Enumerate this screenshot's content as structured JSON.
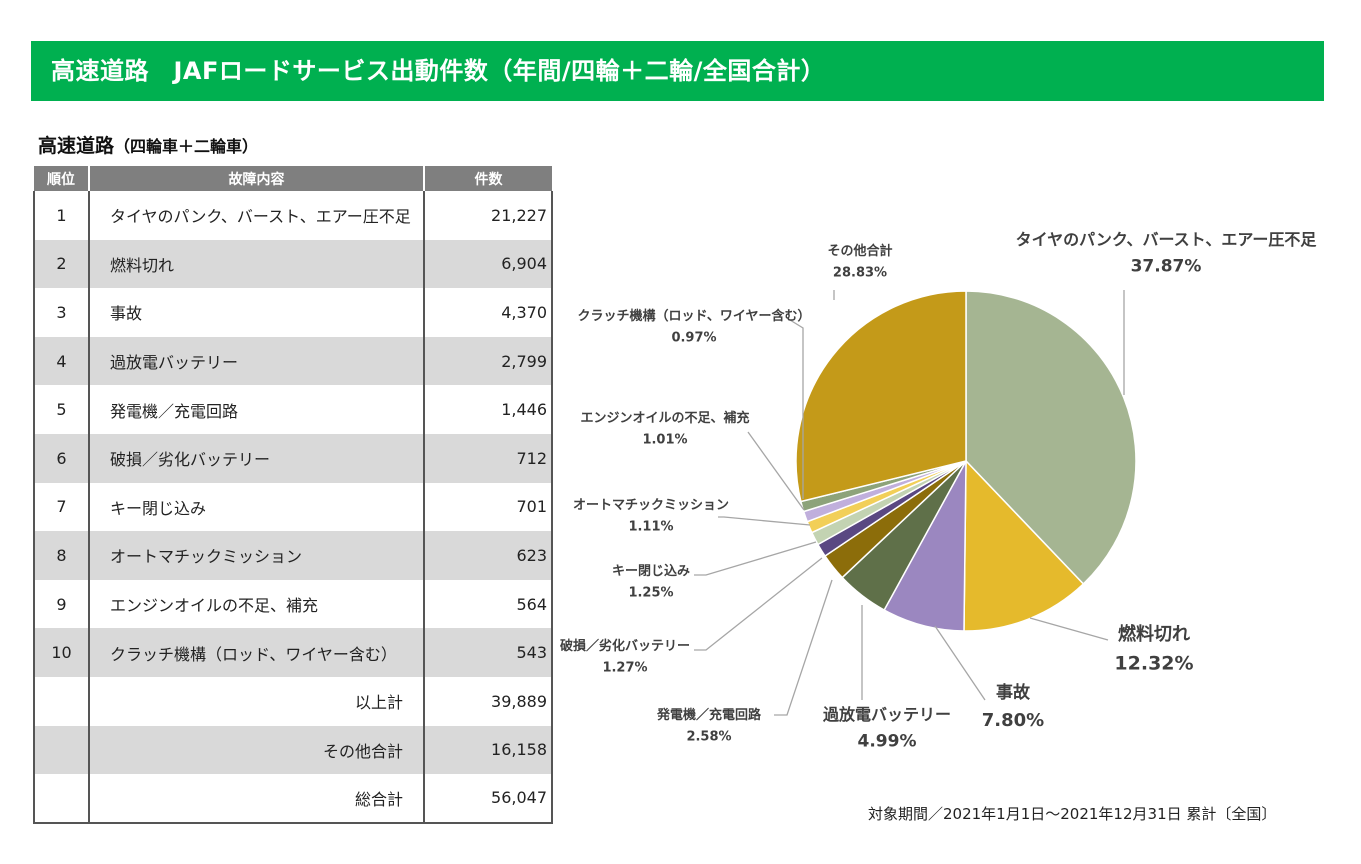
{
  "header": {
    "title": "高速道路　JAFロードサービス出動件数（年間/四輪＋二輪/全国合計）"
  },
  "table": {
    "subtitle_main": "高速道路",
    "subtitle_paren": "（四輪車＋二輪車）",
    "columns": [
      "順位",
      "故障内容",
      "件数"
    ],
    "rows": [
      {
        "rank": "1",
        "cause": "タイヤのパンク、バースト、エアー圧不足",
        "count": "21,227"
      },
      {
        "rank": "2",
        "cause": "燃料切れ",
        "count": "6,904"
      },
      {
        "rank": "3",
        "cause": "事故",
        "count": "4,370"
      },
      {
        "rank": "4",
        "cause": "過放電バッテリー",
        "count": "2,799"
      },
      {
        "rank": "5",
        "cause": "発電機／充電回路",
        "count": "1,446"
      },
      {
        "rank": "6",
        "cause": "破損／劣化バッテリー",
        "count": "712"
      },
      {
        "rank": "7",
        "cause": "キー閉じ込み",
        "count": "701"
      },
      {
        "rank": "8",
        "cause": "オートマチックミッション",
        "count": "623"
      },
      {
        "rank": "9",
        "cause": "エンジンオイルの不足、補充",
        "count": "564"
      },
      {
        "rank": "10",
        "cause": "クラッチ機構（ロッド、ワイヤー含む）",
        "count": "543"
      }
    ],
    "totals": [
      {
        "label": "以上計",
        "count": "39,889"
      },
      {
        "label": "その他合計",
        "count": "16,158"
      },
      {
        "label": "総合計",
        "count": "56,047"
      }
    ]
  },
  "chart_data": {
    "type": "pie",
    "start": "12 o'clock, clockwise",
    "slices": [
      {
        "label": "タイヤのパンク、バースト、エアー圧不足",
        "percent_label": "37.87%",
        "value": 37.87,
        "color": "#a5b592"
      },
      {
        "label": "燃料切れ",
        "percent_label": "12.32%",
        "value": 12.32,
        "color": "#e5ba2c"
      },
      {
        "label": "事故",
        "percent_label": "7.80%",
        "value": 7.8,
        "color": "#9b87c0"
      },
      {
        "label": "過放電バッテリー",
        "percent_label": "4.99%",
        "value": 4.99,
        "color": "#5f7049"
      },
      {
        "label": "発電機／充電回路",
        "percent_label": "2.58%",
        "value": 2.58,
        "color": "#8c6d0a"
      },
      {
        "label": "破損／劣化バッテリー",
        "percent_label": "1.27%",
        "value": 1.27,
        "color": "#5a4882"
      },
      {
        "label": "キー閉じ込み",
        "percent_label": "1.25%",
        "value": 1.25,
        "color": "#c3d3b2"
      },
      {
        "label": "オートマチックミッション",
        "percent_label": "1.11%",
        "value": 1.11,
        "color": "#f2cf58"
      },
      {
        "label": "エンジンオイルの不足、補充",
        "percent_label": "1.01%",
        "value": 1.01,
        "color": "#c0afdc"
      },
      {
        "label": "クラッチ機構（ロッド、ワイヤー含む）",
        "percent_label": "0.97%",
        "value": 0.97,
        "color": "#8da37a"
      },
      {
        "label": "その他合計",
        "percent_label": "28.83%",
        "value": 28.83,
        "color": "#c49a19"
      }
    ]
  },
  "footer": {
    "period": "対象期間／2021年1月1日～2021年12月31日 累計〔全国〕"
  }
}
